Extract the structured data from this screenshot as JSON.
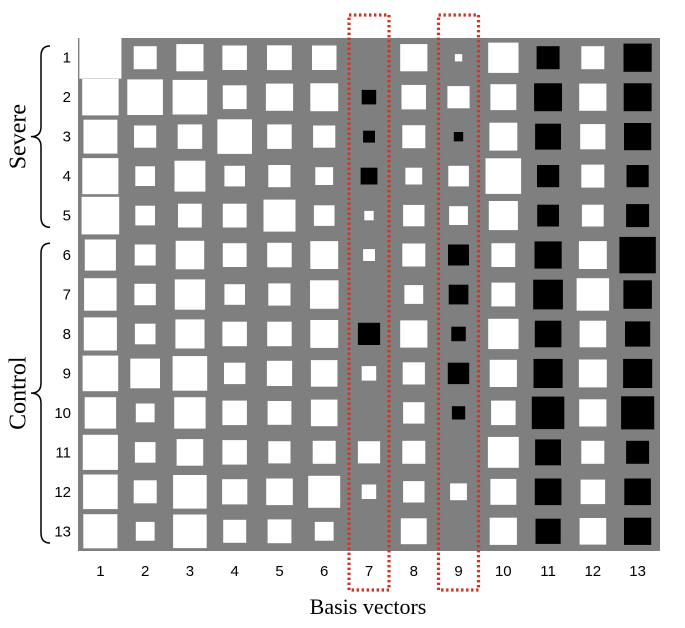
{
  "chart_data": {
    "type": "heatmap",
    "subtype": "hinton",
    "xlabel": "Basis vectors",
    "ylabel": "",
    "title": "",
    "x_categories": [
      "1",
      "2",
      "3",
      "4",
      "5",
      "6",
      "7",
      "8",
      "9",
      "10",
      "11",
      "12",
      "13"
    ],
    "y_categories": [
      "1",
      "2",
      "3",
      "4",
      "5",
      "6",
      "7",
      "8",
      "9",
      "10",
      "11",
      "12",
      "13"
    ],
    "groups": [
      {
        "label": "Severe",
        "rows": [
          1,
          5
        ]
      },
      {
        "label": "Control",
        "rows": [
          6,
          13
        ]
      }
    ],
    "highlighted_columns": [
      "7",
      "9"
    ],
    "encoding": "square area ~ |value|; white = positive, black = negative",
    "values": [
      [
        1.0,
        0.3,
        0.42,
        0.34,
        0.35,
        0.34,
        0.0,
        0.42,
        0.03,
        0.52,
        -0.3,
        0.3,
        -0.45
      ],
      [
        0.75,
        0.72,
        0.68,
        0.32,
        0.42,
        0.44,
        -0.12,
        0.34,
        0.28,
        0.38,
        -0.44,
        0.42,
        -0.44
      ],
      [
        0.65,
        0.28,
        0.34,
        0.68,
        0.34,
        0.28,
        -0.08,
        0.3,
        -0.05,
        0.44,
        -0.38,
        0.36,
        -0.42
      ],
      [
        0.74,
        0.22,
        0.54,
        0.24,
        0.28,
        0.18,
        -0.16,
        0.16,
        0.24,
        0.72,
        -0.28,
        0.3,
        -0.28
      ],
      [
        0.8,
        0.22,
        0.32,
        0.32,
        0.58,
        0.24,
        0.05,
        0.26,
        0.2,
        0.48,
        -0.27,
        0.27,
        -0.3
      ],
      [
        0.55,
        0.25,
        0.46,
        0.32,
        0.34,
        0.44,
        0.08,
        0.3,
        -0.25,
        0.32,
        -0.42,
        0.44,
        -0.75
      ],
      [
        0.6,
        0.26,
        0.52,
        0.24,
        0.28,
        0.46,
        0.0,
        0.2,
        -0.22,
        0.32,
        -0.5,
        0.6,
        -0.46
      ],
      [
        0.62,
        0.24,
        0.48,
        0.34,
        0.34,
        0.44,
        -0.28,
        0.42,
        -0.12,
        0.52,
        -0.4,
        0.4,
        -0.36
      ],
      [
        0.72,
        0.5,
        0.68,
        0.26,
        0.36,
        0.4,
        0.12,
        0.28,
        -0.26,
        0.42,
        -0.48,
        0.44,
        -0.48
      ],
      [
        0.56,
        0.2,
        0.56,
        0.34,
        0.32,
        0.4,
        0.0,
        0.26,
        -0.1,
        0.34,
        -0.6,
        0.42,
        -0.62
      ],
      [
        0.7,
        0.24,
        0.4,
        0.34,
        0.28,
        0.3,
        0.28,
        0.3,
        0.0,
        0.54,
        -0.38,
        0.3,
        -0.3
      ],
      [
        0.68,
        0.3,
        0.64,
        0.36,
        0.4,
        0.58,
        0.12,
        0.26,
        0.16,
        0.38,
        -0.4,
        0.34,
        -0.4
      ],
      [
        0.66,
        0.2,
        0.64,
        0.3,
        0.32,
        0.2,
        0.0,
        0.38,
        0.0,
        0.42,
        -0.36,
        0.4,
        -0.42
      ]
    ],
    "background_color": "#7f7f7f",
    "positive_color": "#ffffff",
    "negative_color": "#000000",
    "highlight_color": "#d7311f",
    "grid": false
  }
}
